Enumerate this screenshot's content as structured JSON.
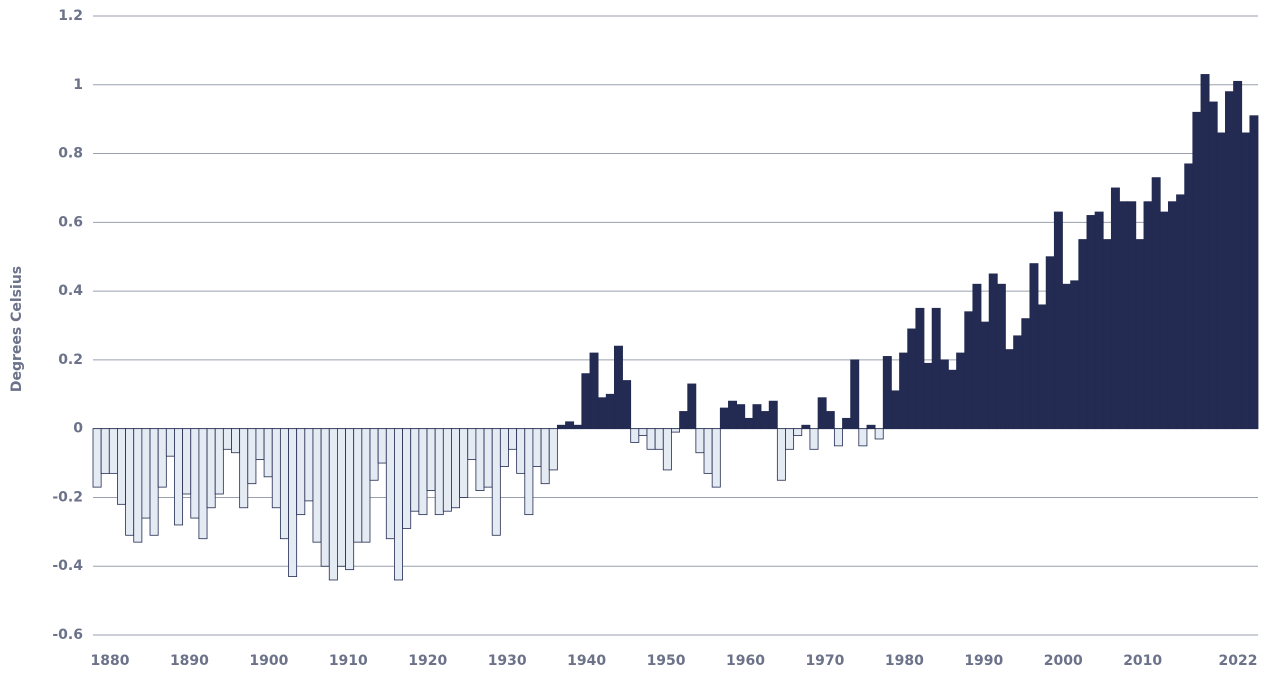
{
  "chart_data": {
    "type": "bar",
    "y_label": "Degrees Celsius",
    "x": [
      1880,
      1881,
      1882,
      1883,
      1884,
      1885,
      1886,
      1887,
      1888,
      1889,
      1890,
      1891,
      1892,
      1893,
      1894,
      1895,
      1896,
      1897,
      1898,
      1899,
      1900,
      1901,
      1902,
      1903,
      1904,
      1905,
      1906,
      1907,
      1908,
      1909,
      1910,
      1911,
      1912,
      1913,
      1914,
      1915,
      1916,
      1917,
      1918,
      1919,
      1920,
      1921,
      1922,
      1923,
      1924,
      1925,
      1926,
      1927,
      1928,
      1929,
      1930,
      1931,
      1932,
      1933,
      1934,
      1935,
      1936,
      1937,
      1938,
      1939,
      1940,
      1941,
      1942,
      1943,
      1944,
      1945,
      1946,
      1947,
      1948,
      1949,
      1950,
      1951,
      1952,
      1953,
      1954,
      1955,
      1956,
      1957,
      1958,
      1959,
      1960,
      1961,
      1962,
      1963,
      1964,
      1965,
      1966,
      1967,
      1968,
      1969,
      1970,
      1971,
      1972,
      1973,
      1974,
      1975,
      1976,
      1977,
      1978,
      1979,
      1980,
      1981,
      1982,
      1983,
      1984,
      1985,
      1986,
      1987,
      1988,
      1989,
      1990,
      1991,
      1992,
      1993,
      1994,
      1995,
      1996,
      1997,
      1998,
      1999,
      2000,
      2001,
      2002,
      2003,
      2004,
      2005,
      2006,
      2007,
      2008,
      2009,
      2010,
      2011,
      2012,
      2013,
      2014,
      2015,
      2016,
      2017,
      2018,
      2019,
      2020,
      2021,
      2022
    ],
    "values": [
      -0.17,
      -0.13,
      -0.13,
      -0.22,
      -0.31,
      -0.33,
      -0.26,
      -0.31,
      -0.17,
      -0.08,
      -0.28,
      -0.19,
      -0.26,
      -0.32,
      -0.23,
      -0.19,
      -0.06,
      -0.07,
      -0.23,
      -0.16,
      -0.09,
      -0.14,
      -0.23,
      -0.32,
      -0.43,
      -0.25,
      -0.21,
      -0.33,
      -0.4,
      -0.44,
      -0.4,
      -0.41,
      -0.33,
      -0.33,
      -0.15,
      -0.1,
      -0.32,
      -0.44,
      -0.29,
      -0.24,
      -0.25,
      -0.18,
      -0.25,
      -0.24,
      -0.23,
      -0.2,
      -0.09,
      -0.18,
      -0.17,
      -0.31,
      -0.11,
      -0.06,
      -0.13,
      -0.25,
      -0.11,
      -0.16,
      -0.12,
      0.01,
      0.02,
      0.01,
      0.16,
      0.22,
      0.09,
      0.1,
      0.24,
      0.14,
      -0.04,
      -0.02,
      -0.06,
      -0.06,
      -0.12,
      -0.01,
      0.05,
      0.13,
      -0.07,
      -0.13,
      -0.17,
      0.06,
      0.08,
      0.07,
      0.03,
      0.07,
      0.05,
      0.08,
      -0.15,
      -0.06,
      -0.02,
      0.01,
      -0.06,
      0.09,
      0.05,
      -0.05,
      0.03,
      0.2,
      -0.05,
      0.01,
      -0.03,
      0.21,
      0.11,
      0.22,
      0.29,
      0.35,
      0.19,
      0.35,
      0.2,
      0.17,
      0.22,
      0.34,
      0.42,
      0.31,
      0.45,
      0.42,
      0.23,
      0.27,
      0.32,
      0.48,
      0.36,
      0.5,
      0.63,
      0.42,
      0.43,
      0.55,
      0.62,
      0.63,
      0.55,
      0.7,
      0.66,
      0.66,
      0.55,
      0.66,
      0.73,
      0.63,
      0.66,
      0.68,
      0.77,
      0.92,
      1.03,
      0.95,
      0.86,
      0.98,
      1.01,
      0.86,
      0.91
    ],
    "colors": {
      "positive": "#232b52",
      "negative": "#e5ebf3"
    },
    "xlim": [
      1880,
      2022
    ],
    "xticks": [
      1880,
      1890,
      1900,
      1910,
      1920,
      1930,
      1940,
      1950,
      1960,
      1970,
      1980,
      1990,
      2000,
      2010,
      2022
    ],
    "ylim": [
      -0.6,
      1.2
    ],
    "yticks": [
      -0.6,
      -0.4,
      -0.2,
      0,
      0.2,
      0.4,
      0.6,
      0.8,
      1,
      1.2
    ],
    "grid": true
  }
}
